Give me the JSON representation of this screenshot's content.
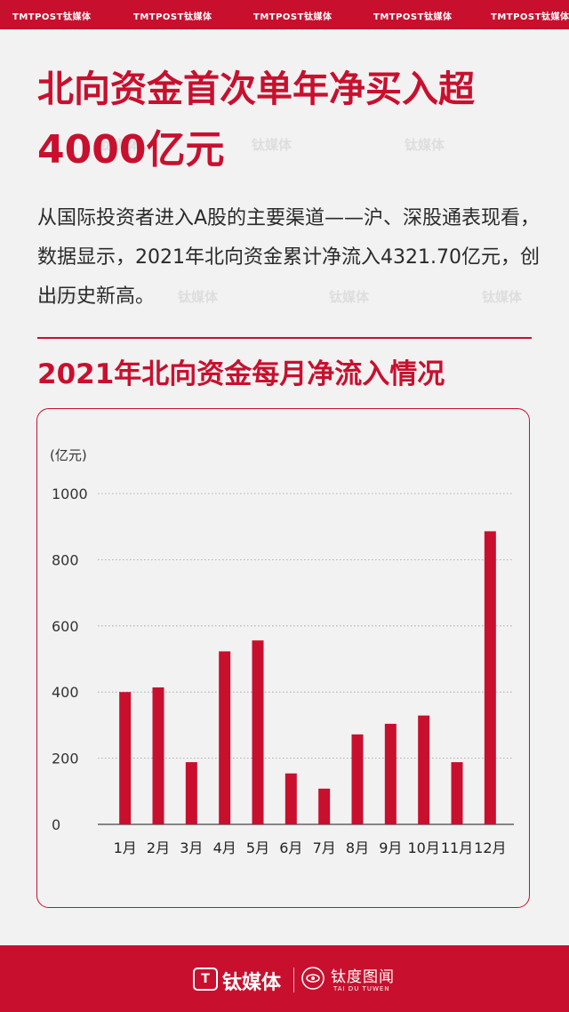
{
  "brand_strip": [
    "TMTPOST钛媒体",
    "TMTPOST钛媒体",
    "TMTPOST钛媒体",
    "TMTPOST钛媒体",
    "TMTPOST钛媒体"
  ],
  "headline": {
    "line1": "北向资金首次单年净买入超",
    "line2": "4000亿元"
  },
  "intro": "从国际投资者进入A股的主要渠道——沪、深股通表现看，数据显示，2021年北向资金累计净流入4321.70亿元，创出历史新高。",
  "watermark_text": "钛媒体",
  "colors": {
    "brand": "#c8102e",
    "background": "#f2f2f2",
    "text": "#2a2a2a"
  },
  "chart_data": {
    "type": "bar",
    "title": "2021年北向资金每月净流入情况",
    "ylabel": "(亿元)",
    "ylim": [
      0,
      1000
    ],
    "yticks": [
      0,
      200,
      400,
      600,
      800,
      1000
    ],
    "grid": true,
    "categories": [
      "1月",
      "2月",
      "3月",
      "4月",
      "5月",
      "6月",
      "7月",
      "8月",
      "9月",
      "10月",
      "11月",
      "12月"
    ],
    "values": [
      400,
      414,
      188,
      523,
      556,
      154,
      108,
      272,
      304,
      329,
      188,
      886
    ]
  },
  "footer": {
    "logo_mark": "T",
    "logo_text": "钛媒体",
    "sub_logo": "钛度图闻",
    "sub_logo_en": "TAI DU TUWEN"
  }
}
